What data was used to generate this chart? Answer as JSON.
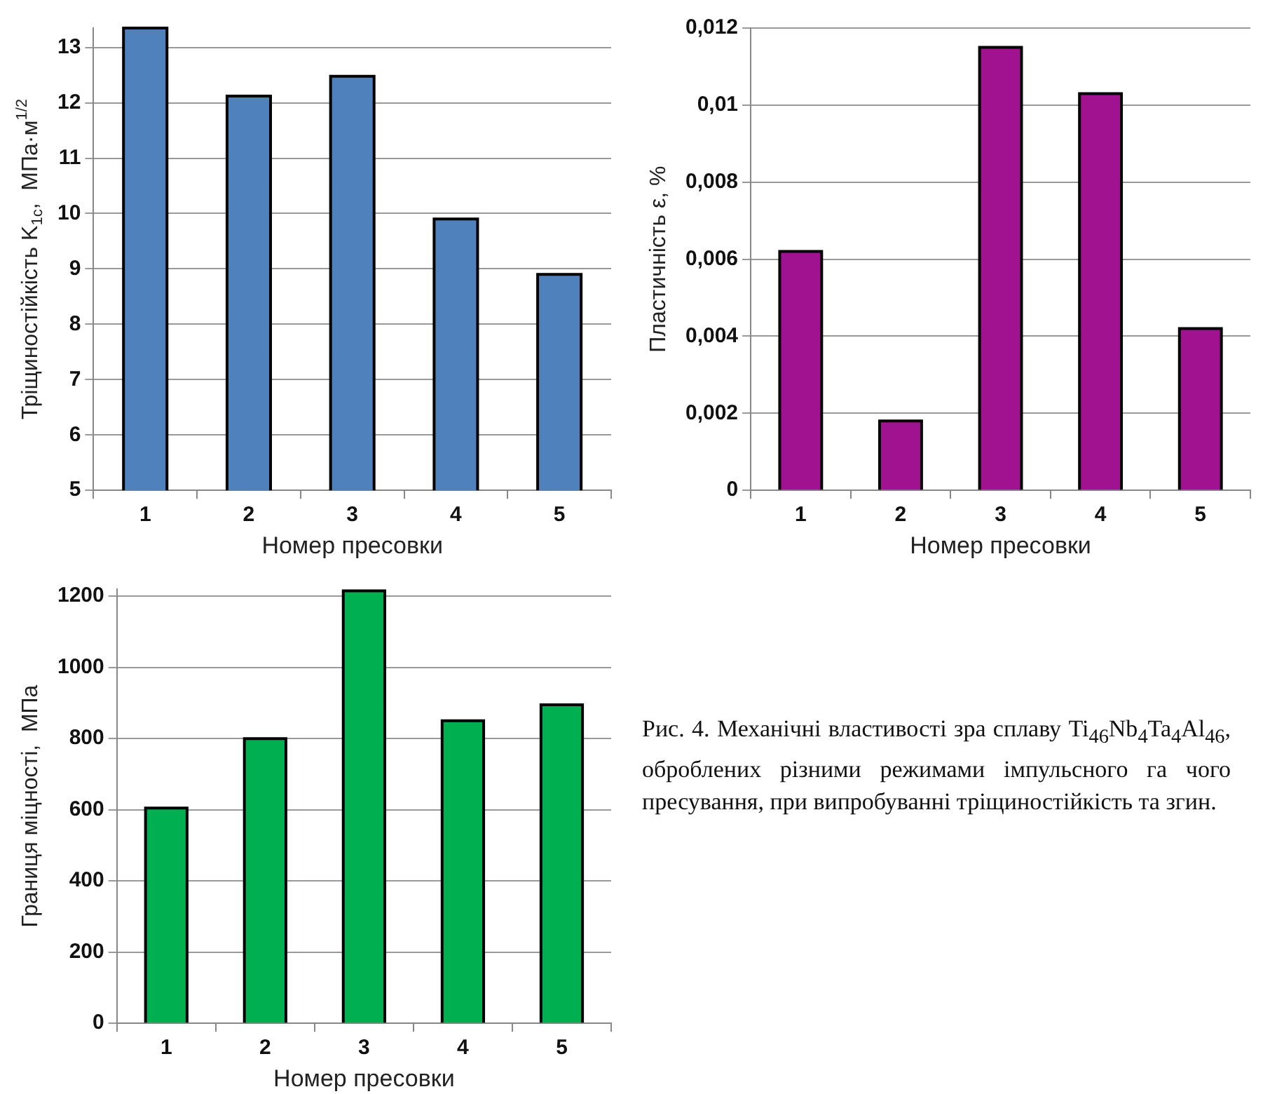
{
  "chart_data": [
    {
      "type": "bar",
      "categories": [
        "1",
        "2",
        "3",
        "4",
        "5"
      ],
      "values": [
        13.35,
        12.12,
        12.48,
        9.9,
        8.9
      ],
      "color": "#4f81bd",
      "xlabel": "Номер пресовки",
      "ylabel": "Тріщиностійкість K$_{1c}$,  МПа·м$^{1/2}$",
      "ylim": [
        5,
        13.35
      ],
      "yticks": [
        5,
        6,
        7,
        8,
        9,
        10,
        11,
        12,
        13
      ],
      "grid": "y"
    },
    {
      "type": "bar",
      "categories": [
        "1",
        "2",
        "3",
        "4",
        "5"
      ],
      "values": [
        0.0062,
        0.0018,
        0.0115,
        0.0103,
        0.0042
      ],
      "color": "#a0128f",
      "xlabel": "Номер пресовки",
      "ylabel": "Пластичність ε, %",
      "ylim": [
        0,
        0.012
      ],
      "yticks": [
        0,
        {
          "value": 0.002,
          "label": "0,002"
        },
        {
          "value": 0.004,
          "label": "0,004"
        },
        {
          "value": 0.006,
          "label": "0,006"
        },
        {
          "value": 0.008,
          "label": "0,008"
        },
        {
          "value": 0.01,
          "label": "0,01"
        },
        {
          "value": 0.012,
          "label": "0,012"
        }
      ],
      "grid": "y"
    },
    {
      "type": "bar",
      "categories": [
        "1",
        "2",
        "3",
        "4",
        "5"
      ],
      "values": [
        605,
        800,
        1215,
        850,
        895
      ],
      "color": "#00b050",
      "xlabel": "Номер пресовки",
      "ylabel": "Границя міцності,  МПа",
      "ylim": [
        0,
        1220
      ],
      "yticks": [
        0,
        200,
        400,
        600,
        800,
        1000,
        1200
      ],
      "grid": "y",
      "annotations": [
        "Рис. 4. Механічні властивості зра сплаву Ti$_{46}$Nb$_{4}$Ta$_{4}$Al$_{46}$, оброблених різними режимами імпульсного га чого пресування, при випробуванні тріщиностійкість та згин."
      ]
    }
  ]
}
